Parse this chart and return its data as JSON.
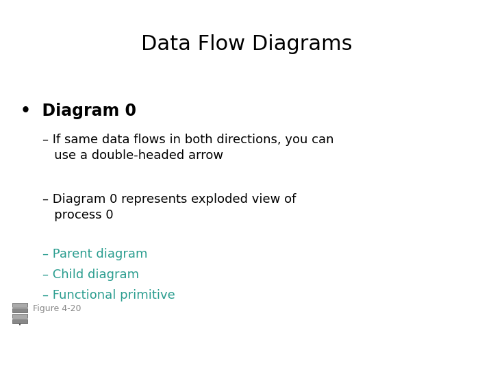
{
  "title": "Data Flow Diagrams",
  "title_fontsize": 22,
  "title_color": "#000000",
  "background_color": "#ffffff",
  "bullet_point": "Diagram 0",
  "bullet_fontsize": 17,
  "bullet_color": "#000000",
  "sub_items": [
    {
      "text": "– If same data flows in both directions, you can\n   use a double-headed arrow",
      "color": "#000000",
      "fontsize": 13
    },
    {
      "text": "– Diagram 0 represents exploded view of\n   process 0",
      "color": "#000000",
      "fontsize": 13
    },
    {
      "text": "– Parent diagram",
      "color": "#2a9d8f",
      "fontsize": 13
    },
    {
      "text": "– Child diagram",
      "color": "#2a9d8f",
      "fontsize": 13
    },
    {
      "text": "– Functional primitive",
      "color": "#2a9d8f",
      "fontsize": 13
    }
  ],
  "figure_caption": "Figure 4-20",
  "figure_caption_fontsize": 9,
  "figure_caption_color": "#888888",
  "teal_color": "#2a9d8f"
}
